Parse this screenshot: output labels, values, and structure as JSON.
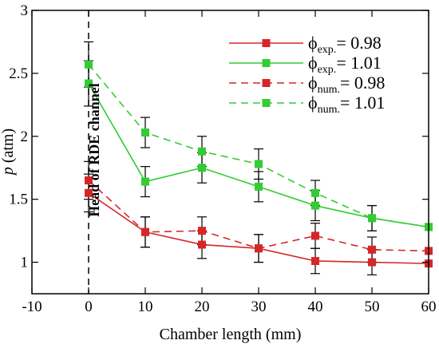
{
  "chart_data": {
    "type": "line",
    "xlabel": "Chamber length (mm)",
    "ylabel_italic": "p",
    "ylabel_unit": " (atm)",
    "xlim": [
      -10,
      60
    ],
    "ylim": [
      0.75,
      3.0
    ],
    "xticks": [
      "-10",
      "0",
      "10",
      "20",
      "30",
      "40",
      "50",
      "60"
    ],
    "yticks": [
      "1",
      "1.5",
      "2",
      "2.5",
      "3"
    ],
    "annotation": "Head of RDE channel",
    "legend_position": "top-right",
    "series": [
      {
        "symbol": "ϕ",
        "sub": "exp.",
        "suffix": "= 0.98",
        "color": "#d62728",
        "dashed": false,
        "x": [
          0,
          10,
          20,
          30,
          40,
          50,
          60
        ],
        "y": [
          1.55,
          1.24,
          1.14,
          1.11,
          1.01,
          1.0,
          0.99
        ],
        "err": [
          0.15,
          0.12,
          0.11,
          0.11,
          0.1,
          0.1,
          0.0
        ]
      },
      {
        "symbol": "ϕ",
        "sub": "exp.",
        "suffix": "= 1.01",
        "color": "#33cc33",
        "dashed": false,
        "x": [
          0,
          10,
          20,
          30,
          40,
          50,
          60
        ],
        "y": [
          2.42,
          1.64,
          1.75,
          1.6,
          1.45,
          1.35,
          1.28
        ],
        "err": [
          0.18,
          0.12,
          0.12,
          0.12,
          0.12,
          0.1,
          0.0
        ]
      },
      {
        "symbol": "ϕ",
        "sub": "num.",
        "suffix": "= 0.98",
        "color": "#d62728",
        "dashed": true,
        "x": [
          0,
          10,
          20,
          30,
          40,
          50,
          60
        ],
        "y": [
          1.65,
          1.24,
          1.25,
          1.11,
          1.21,
          1.1,
          1.09
        ],
        "err": [
          0.15,
          0.12,
          0.11,
          0.11,
          0.1,
          0.1,
          0.0
        ]
      },
      {
        "symbol": "ϕ",
        "sub": "num.",
        "suffix": "= 1.01",
        "color": "#33cc33",
        "dashed": true,
        "x": [
          0,
          10,
          20,
          30,
          40,
          50,
          60
        ],
        "y": [
          2.57,
          2.03,
          1.88,
          1.78,
          1.55,
          1.35,
          1.28
        ],
        "err": [
          0.18,
          0.12,
          0.12,
          0.12,
          0.1,
          0.1,
          0.0
        ]
      }
    ]
  }
}
